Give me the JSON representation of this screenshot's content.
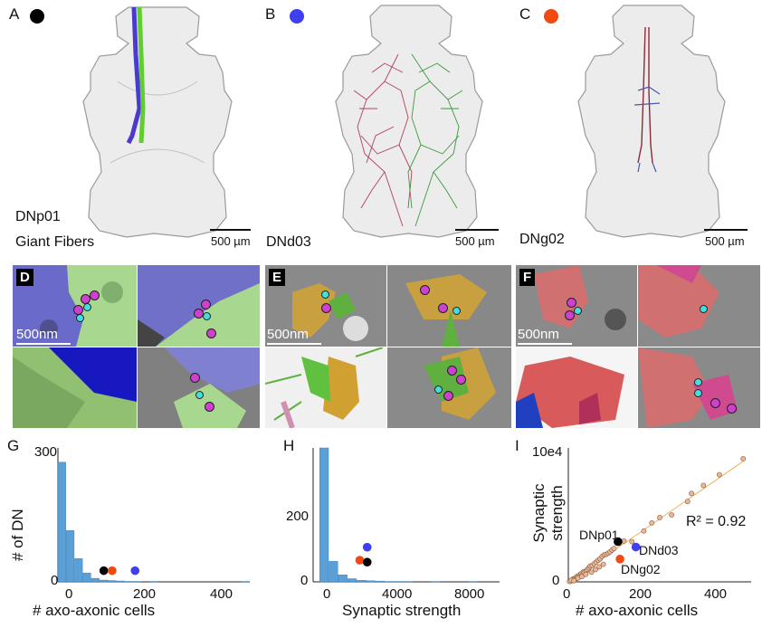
{
  "panels": {
    "A": {
      "letter": "A",
      "label_line1": "DNp01",
      "label_line2": "Giant Fibers",
      "scale": "500 µm",
      "dot_color": "#000000"
    },
    "B": {
      "letter": "B",
      "label_line1": "DNd03",
      "scale": "500 µm",
      "dot_color": "#3f3ff0"
    },
    "C": {
      "letter": "C",
      "label_line1": "DNg02",
      "scale": "500 µm",
      "dot_color": "#f04a10"
    },
    "D": {
      "letter": "D",
      "scale": "500nm"
    },
    "E": {
      "letter": "E",
      "scale": "500nm"
    },
    "F": {
      "letter": "F",
      "scale": "500nm"
    },
    "G": {
      "letter": "G"
    },
    "H": {
      "letter": "H"
    },
    "I": {
      "letter": "I"
    }
  },
  "colors": {
    "histogram_bar": "#5aa0d6",
    "dnp01": "#000000",
    "dnd03": "#3f3ff0",
    "dng02": "#f04a10",
    "fit_line": "#f0b060",
    "scatter_fill": "#e8b89a",
    "scatter_stroke": "#8a5a3a"
  },
  "chart_data": [
    {
      "id": "G",
      "type": "bar",
      "xlabel": "# axo-axonic cells",
      "ylabel": "# of DN",
      "xlim": [
        0,
        460
      ],
      "ylim": [
        0,
        300
      ],
      "xticks": [
        "0",
        "200",
        "400"
      ],
      "yticks": [
        "0",
        "300"
      ],
      "bin_width": 20,
      "bin_starts": [
        0,
        20,
        40,
        60,
        80,
        100,
        120,
        140,
        160,
        180,
        200,
        220,
        240,
        260,
        280,
        300,
        320,
        340,
        360,
        380,
        400,
        420,
        440
      ],
      "values": [
        268,
        115,
        52,
        20,
        8,
        4,
        3,
        2,
        1,
        1,
        0,
        1,
        0,
        0,
        0,
        0,
        0,
        0,
        0,
        0,
        0,
        0,
        1
      ],
      "markers": [
        {
          "name": "DNp01",
          "x": 110,
          "y": 25,
          "color": "#000000"
        },
        {
          "name": "DNg02",
          "x": 130,
          "y": 25,
          "color": "#f04a10"
        },
        {
          "name": "DNd03",
          "x": 185,
          "y": 25,
          "color": "#3f3ff0"
        }
      ]
    },
    {
      "id": "H",
      "type": "bar",
      "xlabel": "Synaptic strength",
      "ylabel": "",
      "xlim": [
        -600,
        9400
      ],
      "ylim": [
        0,
        340
      ],
      "xticks": [
        "0",
        "4000",
        "8000"
      ],
      "yticks": [
        "0",
        "200"
      ],
      "bin_width": 500,
      "bin_starts": [
        -250,
        250,
        750,
        1250,
        1750,
        2250,
        2750,
        3250,
        3750,
        4250,
        4750,
        5250,
        5750,
        6250,
        6750,
        7250,
        7750,
        8250,
        8750
      ],
      "values": [
        340,
        52,
        18,
        8,
        4,
        3,
        2,
        1,
        1,
        1,
        0,
        0,
        1,
        0,
        0,
        0,
        1,
        0,
        0
      ],
      "markers": [
        {
          "name": "DNg02",
          "x": 1900,
          "y": 55,
          "color": "#f04a10"
        },
        {
          "name": "DNp01",
          "x": 2300,
          "y": 50,
          "color": "#000000"
        },
        {
          "name": "DNd03",
          "x": 2300,
          "y": 88,
          "color": "#3f3ff0"
        }
      ]
    },
    {
      "id": "I",
      "type": "scatter",
      "xlabel": "# axo-axonic cells",
      "ylabel": "Synaptic strength",
      "xlim": [
        0,
        460
      ],
      "ylim": [
        0,
        100000
      ],
      "xticks": [
        "0",
        "200",
        "400"
      ],
      "yticks": [
        "0",
        "10e4"
      ],
      "annotation": "R² = 0.92",
      "fit": {
        "x": [
          0,
          440
        ],
        "y": [
          0,
          90000
        ]
      },
      "points": [
        [
          5,
          500
        ],
        [
          8,
          900
        ],
        [
          10,
          1500
        ],
        [
          12,
          2200
        ],
        [
          15,
          1800
        ],
        [
          18,
          3000
        ],
        [
          20,
          2600
        ],
        [
          22,
          4100
        ],
        [
          25,
          3500
        ],
        [
          28,
          5200
        ],
        [
          30,
          4200
        ],
        [
          32,
          6100
        ],
        [
          35,
          5400
        ],
        [
          38,
          7600
        ],
        [
          40,
          6800
        ],
        [
          45,
          8200
        ],
        [
          48,
          9400
        ],
        [
          52,
          10500
        ],
        [
          55,
          11800
        ],
        [
          60,
          12200
        ],
        [
          65,
          13500
        ],
        [
          70,
          14800
        ],
        [
          75,
          16200
        ],
        [
          80,
          17200
        ],
        [
          85,
          19000
        ],
        [
          90,
          20100
        ],
        [
          95,
          20500
        ],
        [
          100,
          21300
        ],
        [
          105,
          22400
        ],
        [
          110,
          23800
        ],
        [
          115,
          24900
        ],
        [
          3,
          300
        ],
        [
          7,
          1200
        ],
        [
          14,
          900
        ],
        [
          24,
          2800
        ],
        [
          34,
          3900
        ],
        [
          44,
          5600
        ],
        [
          58,
          7200
        ],
        [
          68,
          9100
        ],
        [
          78,
          11200
        ],
        [
          88,
          13100
        ],
        [
          140,
          30500
        ],
        [
          160,
          30000
        ],
        [
          190,
          38000
        ],
        [
          210,
          44000
        ],
        [
          230,
          48000
        ],
        [
          260,
          50000
        ],
        [
          300,
          60000
        ],
        [
          310,
          66000
        ],
        [
          340,
          72000
        ],
        [
          380,
          80000
        ],
        [
          440,
          92000
        ]
      ],
      "markers": [
        {
          "name": "DNp01",
          "x": 125,
          "y": 30000,
          "color": "#000000"
        },
        {
          "name": "DNd03",
          "x": 170,
          "y": 26000,
          "color": "#3f3ff0"
        },
        {
          "name": "DNg02",
          "x": 130,
          "y": 17000,
          "color": "#f04a10"
        }
      ],
      "marker_labels": {
        "DNp01": "DNp01",
        "DNd03": "DNd03",
        "DNg02": "DNg02"
      }
    }
  ]
}
